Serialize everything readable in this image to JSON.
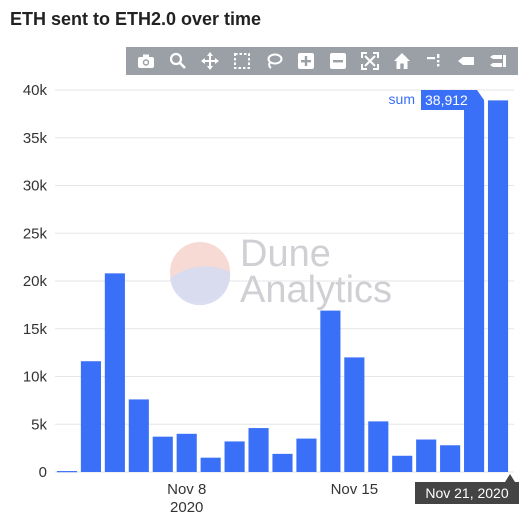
{
  "title": "ETH sent to ETH2.0 over time",
  "toolbar": {
    "icons": [
      "camera-icon",
      "zoom-icon",
      "pan-icon",
      "box-select-icon",
      "lasso-icon",
      "zoom-in-icon",
      "zoom-out-icon",
      "autoscale-icon",
      "home-icon",
      "spike-lines-icon",
      "hover-closest-icon",
      "hover-compare-icon"
    ]
  },
  "watermark": {
    "line1": "Dune",
    "line2": "Analytics"
  },
  "hover": {
    "label": "sum",
    "value": "38,912",
    "x_label": "Nov 21, 2020"
  },
  "colors": {
    "bar": "#3a6ff7",
    "toolbar": "#9aa0a6",
    "hover_x_bg": "#444444"
  },
  "chart_data": {
    "type": "bar",
    "title": "ETH sent to ETH2.0 over time",
    "x": [
      "2020-11-03",
      "2020-11-04",
      "2020-11-05",
      "2020-11-06",
      "2020-11-07",
      "2020-11-08",
      "2020-11-09",
      "2020-11-10",
      "2020-11-11",
      "2020-11-12",
      "2020-11-13",
      "2020-11-14",
      "2020-11-15",
      "2020-11-16",
      "2020-11-17",
      "2020-11-18",
      "2020-11-19",
      "2020-11-20",
      "2020-11-21"
    ],
    "series": [
      {
        "name": "sum",
        "values": [
          100,
          11600,
          20800,
          7600,
          3700,
          4000,
          1500,
          3200,
          4600,
          1900,
          3500,
          16900,
          12000,
          5300,
          1700,
          3400,
          2800,
          38900,
          38912
        ]
      }
    ],
    "ylim": [
      0,
      40000
    ],
    "y_ticks": [
      0,
      5000,
      10000,
      15000,
      20000,
      25000,
      30000,
      35000,
      40000
    ],
    "y_tick_labels": [
      "0",
      "5k",
      "10k",
      "15k",
      "20k",
      "25k",
      "30k",
      "35k",
      "40k"
    ],
    "x_tick_labels": [
      {
        "line1": "Nov 8",
        "line2": "2020",
        "date": "2020-11-08"
      },
      {
        "line1": "Nov 15",
        "line2": "",
        "date": "2020-11-15"
      }
    ],
    "grid": true
  }
}
